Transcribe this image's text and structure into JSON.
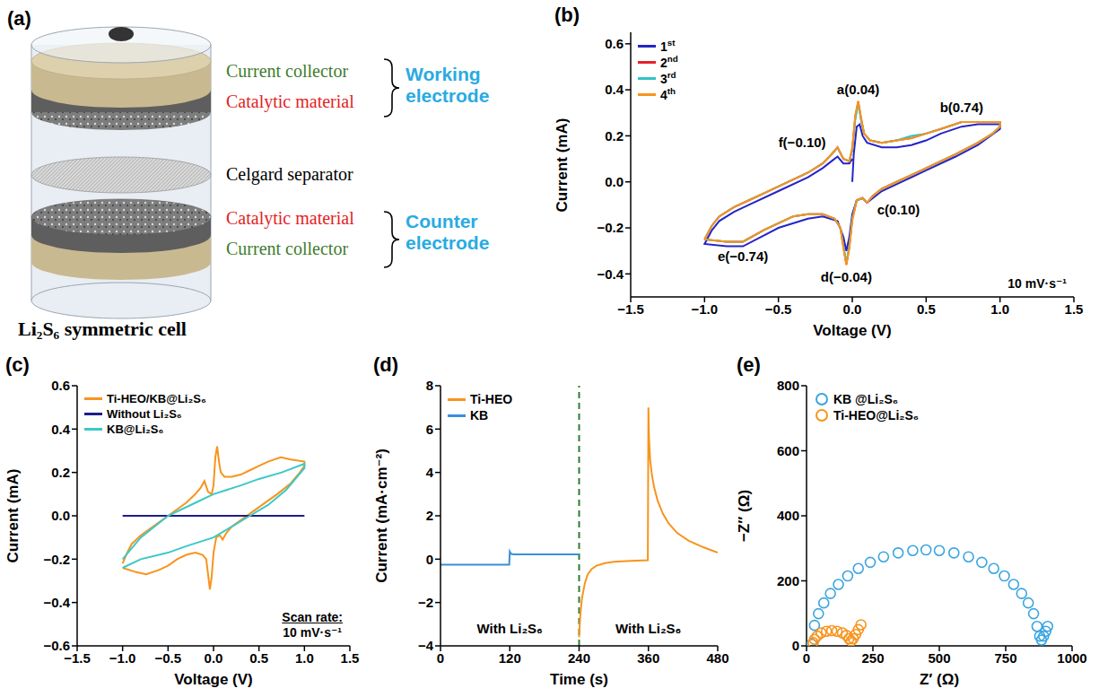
{
  "diagram": {
    "panel": "(a)",
    "layers": [
      "Current collector",
      "Catalytic material",
      "Celgard separator",
      "Catalytic material",
      "Current collector"
    ],
    "groups": [
      "Working electrode",
      "Counter electrode"
    ],
    "caption": "Li₂S₆ symmetric cell"
  },
  "chart_data": [
    {
      "panel": "(b)",
      "type": "line",
      "x_label": "Voltage (V)",
      "y_label": "Current (mA)",
      "legend": "top-left",
      "xlim": [
        -1.5,
        1.5
      ],
      "xticks": [
        {
          "value": -1.5,
          "label": "−1.5"
        },
        {
          "value": -1,
          "label": "−1.0"
        },
        {
          "value": -0.5,
          "label": "−0.5"
        },
        {
          "value": 0,
          "label": "0.0"
        },
        0.5,
        {
          "value": 1,
          "label": "1.0"
        },
        1.5
      ],
      "ylim": [
        -0.5,
        0.65
      ],
      "yticks": [
        {
          "value": -0.4,
          "label": "−0.4"
        },
        {
          "value": -0.2,
          "label": "−0.2"
        },
        {
          "value": 0,
          "label": "0.0"
        },
        0.2,
        0.4,
        0.6
      ],
      "x": [
        -1.0,
        -0.95,
        -0.9,
        -0.8,
        -0.7,
        -0.6,
        -0.5,
        -0.4,
        -0.3,
        -0.2,
        -0.14,
        -0.1,
        -0.06,
        -0.02,
        0.0,
        0.02,
        0.04,
        0.06,
        0.08,
        0.12,
        0.2,
        0.3,
        0.4,
        0.5,
        0.6,
        0.74,
        0.85,
        1.0,
        1.0,
        0.95,
        0.85,
        0.7,
        0.6,
        0.5,
        0.4,
        0.3,
        0.2,
        0.14,
        0.1,
        0.07,
        0.03,
        0.0,
        -0.02,
        -0.04,
        -0.06,
        -0.08,
        -0.12,
        -0.2,
        -0.3,
        -0.4,
        -0.5,
        -0.6,
        -0.74,
        -0.85,
        -1.0
      ],
      "series": [
        {
          "name": "1st",
          "color": "#2424c8",
          "x": [
            0.0,
            0.01,
            0.03,
            0.05,
            0.07,
            0.1,
            0.2,
            0.3,
            0.4,
            0.5,
            0.6,
            0.74,
            0.85,
            1.0,
            1.0,
            0.85,
            0.7,
            0.5,
            0.3,
            0.2,
            0.14,
            0.1,
            0.07,
            0.03,
            0.0,
            -0.02,
            -0.04,
            -0.06,
            -0.1,
            -0.2,
            -0.3,
            -0.5,
            -0.74,
            -0.85,
            -1.0,
            -0.95,
            -0.9,
            -0.8,
            -0.7,
            -0.5,
            -0.3,
            -0.2,
            -0.14,
            -0.1,
            -0.06,
            -0.02,
            0.0
          ],
          "values": [
            0.0,
            0.12,
            0.24,
            0.25,
            0.2,
            0.17,
            0.15,
            0.15,
            0.16,
            0.18,
            0.21,
            0.24,
            0.25,
            0.25,
            0.23,
            0.16,
            0.11,
            0.05,
            -0.01,
            -0.04,
            -0.07,
            -0.09,
            -0.07,
            -0.08,
            -0.14,
            -0.24,
            -0.3,
            -0.24,
            -0.17,
            -0.15,
            -0.16,
            -0.2,
            -0.28,
            -0.28,
            -0.27,
            -0.21,
            -0.17,
            -0.13,
            -0.1,
            -0.04,
            0.02,
            0.06,
            0.09,
            0.11,
            0.08,
            0.08,
            0.1
          ]
        },
        {
          "name": "2nd",
          "color": "#e8202a",
          "values": [
            -0.25,
            -0.19,
            -0.15,
            -0.11,
            -0.08,
            -0.05,
            -0.02,
            0.01,
            0.04,
            0.08,
            0.12,
            0.15,
            0.1,
            0.09,
            0.14,
            0.28,
            0.35,
            0.27,
            0.21,
            0.18,
            0.17,
            0.18,
            0.19,
            0.21,
            0.23,
            0.26,
            0.26,
            0.26,
            0.24,
            0.21,
            0.17,
            0.12,
            0.09,
            0.06,
            0.03,
            0.0,
            -0.03,
            -0.06,
            -0.09,
            -0.07,
            -0.08,
            -0.16,
            -0.28,
            -0.36,
            -0.28,
            -0.2,
            -0.16,
            -0.14,
            -0.14,
            -0.15,
            -0.18,
            -0.21,
            -0.26,
            -0.26,
            -0.25
          ]
        },
        {
          "name": "3rd",
          "color": "#2ec4c4",
          "values": [
            -0.25,
            -0.19,
            -0.15,
            -0.11,
            -0.08,
            -0.05,
            -0.02,
            0.01,
            0.04,
            0.08,
            0.12,
            0.15,
            0.1,
            0.09,
            0.14,
            0.27,
            0.34,
            0.27,
            0.21,
            0.18,
            0.17,
            0.18,
            0.2,
            0.21,
            0.23,
            0.26,
            0.26,
            0.26,
            0.24,
            0.21,
            0.17,
            0.12,
            0.09,
            0.06,
            0.03,
            0.0,
            -0.03,
            -0.06,
            -0.09,
            -0.07,
            -0.08,
            -0.16,
            -0.28,
            -0.35,
            -0.28,
            -0.2,
            -0.16,
            -0.14,
            -0.14,
            -0.15,
            -0.18,
            -0.21,
            -0.26,
            -0.26,
            -0.25
          ]
        },
        {
          "name": "4th",
          "color": "#f7941d",
          "values": [
            -0.25,
            -0.19,
            -0.15,
            -0.11,
            -0.08,
            -0.05,
            -0.02,
            0.01,
            0.04,
            0.08,
            0.12,
            0.15,
            0.1,
            0.09,
            0.15,
            0.29,
            0.35,
            0.28,
            0.21,
            0.18,
            0.17,
            0.18,
            0.19,
            0.21,
            0.23,
            0.26,
            0.26,
            0.26,
            0.24,
            0.21,
            0.17,
            0.12,
            0.09,
            0.06,
            0.03,
            0.0,
            -0.03,
            -0.06,
            -0.09,
            -0.07,
            -0.08,
            -0.17,
            -0.29,
            -0.36,
            -0.29,
            -0.2,
            -0.16,
            -0.14,
            -0.14,
            -0.15,
            -0.18,
            -0.21,
            -0.26,
            -0.26,
            -0.25
          ]
        }
      ],
      "annotations": [
        {
          "text": "a(0.04)",
          "x": 0.04,
          "y": 0.35
        },
        {
          "text": "b(0.74)",
          "x": 0.74,
          "y": 0.27
        },
        {
          "text": "f(−0.10)",
          "x": -0.13,
          "y": 0.17
        },
        {
          "text": "c(0.10)",
          "x": 0.12,
          "y": -0.12
        },
        {
          "text": "d(−0.04)",
          "x": -0.04,
          "y": -0.36
        },
        {
          "text": "e(−0.74)",
          "x": -0.74,
          "y": -0.27
        },
        {
          "text": "10 mV·s⁻¹"
        }
      ]
    },
    {
      "panel": "(c)",
      "type": "line",
      "x_label": "Voltage (V)",
      "y_label": "Current (mA)",
      "legend": "top-left",
      "xlim": [
        -1.5,
        1.5
      ],
      "xticks": [
        {
          "value": -1.5,
          "label": "−1.5"
        },
        {
          "value": -1,
          "label": "−1.0"
        },
        {
          "value": -0.5,
          "label": "−0.5"
        },
        {
          "value": 0,
          "label": "0.0"
        },
        0.5,
        {
          "value": 1,
          "label": "1.0"
        },
        1.5
      ],
      "ylim": [
        -0.6,
        0.6
      ],
      "yticks": [
        {
          "value": -0.6,
          "label": "−0.6"
        },
        {
          "value": -0.4,
          "label": "−0.4"
        },
        {
          "value": -0.2,
          "label": "−0.2"
        },
        {
          "value": 0,
          "label": "0.0"
        },
        0.2,
        0.4,
        0.6
      ],
      "x": [
        -1.0,
        -0.95,
        -0.9,
        -0.8,
        -0.7,
        -0.6,
        -0.5,
        -0.4,
        -0.3,
        -0.2,
        -0.14,
        -0.1,
        -0.06,
        -0.02,
        0.0,
        0.02,
        0.04,
        0.06,
        0.08,
        0.12,
        0.2,
        0.3,
        0.4,
        0.5,
        0.6,
        0.74,
        0.85,
        1.0,
        1.0,
        0.95,
        0.85,
        0.7,
        0.6,
        0.5,
        0.4,
        0.3,
        0.2,
        0.14,
        0.1,
        0.07,
        0.03,
        0.0,
        -0.02,
        -0.04,
        -0.06,
        -0.08,
        -0.12,
        -0.2,
        -0.3,
        -0.4,
        -0.5,
        -0.6,
        -0.74,
        -0.85,
        -1.0
      ],
      "series": [
        {
          "name": "Ti-HEO/KB@Li₂S₆",
          "color": "#f7941d",
          "values": [
            -0.22,
            -0.17,
            -0.13,
            -0.09,
            -0.06,
            -0.03,
            0.0,
            0.03,
            0.06,
            0.1,
            0.13,
            0.16,
            0.11,
            0.1,
            0.14,
            0.27,
            0.32,
            0.25,
            0.2,
            0.18,
            0.18,
            0.19,
            0.21,
            0.23,
            0.25,
            0.27,
            0.26,
            0.25,
            0.23,
            0.2,
            0.15,
            0.1,
            0.07,
            0.04,
            0.01,
            -0.02,
            -0.05,
            -0.08,
            -0.11,
            -0.09,
            -0.1,
            -0.17,
            -0.28,
            -0.34,
            -0.27,
            -0.2,
            -0.18,
            -0.17,
            -0.18,
            -0.2,
            -0.23,
            -0.25,
            -0.27,
            -0.26,
            -0.24
          ]
        },
        {
          "name": "Without Li₂S₆",
          "color": "#1e1e8c",
          "x": [
            -1.0,
            1.0
          ],
          "values": [
            0.0,
            0.0
          ]
        },
        {
          "name": "KB@Li₂S₆",
          "color": "#3cc8c8",
          "x": [
            -1.0,
            -0.8,
            -0.5,
            -0.2,
            0.0,
            0.3,
            0.5,
            0.75,
            1.0,
            1.0,
            0.8,
            0.6,
            0.4,
            0.2,
            0.0,
            -0.3,
            -0.5,
            -0.8,
            -1.0
          ],
          "values": [
            -0.2,
            -0.1,
            0.0,
            0.06,
            0.1,
            0.14,
            0.17,
            0.2,
            0.24,
            0.22,
            0.12,
            0.05,
            0.0,
            -0.05,
            -0.1,
            -0.14,
            -0.17,
            -0.2,
            -0.24
          ]
        }
      ],
      "annotations": [
        {
          "text": "Scan rate:"
        },
        {
          "text": "10 mV·s⁻¹"
        }
      ]
    },
    {
      "panel": "(d)",
      "type": "line",
      "x_label": "Time (s)",
      "y_label": "Current (mA·cm⁻²)",
      "legend": "top-left",
      "xlim": [
        0,
        480
      ],
      "xticks": [
        0,
        120,
        240,
        360,
        480
      ],
      "ylim": [
        -4,
        8
      ],
      "yticks": [
        {
          "value": -4,
          "label": "−4"
        },
        {
          "value": -2,
          "label": "−2"
        },
        0,
        2,
        4,
        6,
        8
      ],
      "vline": {
        "x": 240,
        "color": "#2e7d32",
        "line_style": "dashed"
      },
      "series": [
        {
          "name": "Ti-HEO",
          "color": "#f7941d",
          "x": [
            240,
            242,
            245,
            250,
            255,
            262,
            270,
            285,
            300,
            330,
            359,
            360,
            361,
            363,
            366,
            370,
            376,
            385,
            395,
            410,
            430,
            455,
            480
          ],
          "values": [
            -3.6,
            -2.6,
            -1.8,
            -1.1,
            -0.7,
            -0.45,
            -0.3,
            -0.18,
            -0.12,
            -0.08,
            -0.05,
            7.0,
            5.6,
            4.6,
            3.9,
            3.3,
            2.7,
            2.1,
            1.65,
            1.2,
            0.85,
            0.55,
            0.3
          ]
        },
        {
          "name": "KB",
          "color": "#3b8fd8",
          "x": [
            0,
            119,
            120,
            122,
            126,
            240
          ],
          "values": [
            -0.25,
            -0.25,
            0.35,
            0.25,
            0.22,
            0.22
          ]
        }
      ],
      "annotations": [
        {
          "text": "With Li₂S₆",
          "x": 120,
          "y": -3.2
        },
        {
          "text": "With Li₂S₆",
          "x": 360,
          "y": -3.2
        }
      ]
    },
    {
      "panel": "(e)",
      "type": "scatter",
      "x_label": "Z′ (Ω)",
      "y_label": "−Z″ (Ω)",
      "legend": "top-left",
      "marker": "hollow",
      "xlim": [
        0,
        1000
      ],
      "xticks": [
        0,
        250,
        500,
        750,
        1000
      ],
      "ylim": [
        0,
        800
      ],
      "yticks": [
        0,
        200,
        400,
        600,
        800
      ],
      "series": [
        {
          "name": "KB @Li₂S₆",
          "color": "#3ba5e0",
          "x": [
            20,
            30,
            45,
            65,
            90,
            120,
            155,
            195,
            240,
            290,
            345,
            400,
            450,
            500,
            555,
            610,
            660,
            705,
            745,
            780,
            810,
            835,
            855,
            868,
            878,
            885,
            893,
            901,
            908
          ],
          "values": [
            5,
            63,
            99,
            132,
            161,
            189,
            215,
            238,
            257,
            274,
            286,
            293,
            295,
            293,
            286,
            274,
            257,
            238,
            215,
            189,
            161,
            132,
            99,
            60,
            30,
            18,
            30,
            45,
            60
          ]
        },
        {
          "name": "Ti-HEO@Li₂S₆",
          "color": "#f7941d",
          "x": [
            25,
            30,
            40,
            55,
            75,
            95,
            115,
            135,
            150,
            160,
            168,
            176,
            185,
            195,
            205
          ],
          "values": [
            10,
            20,
            30,
            40,
            45,
            47,
            45,
            40,
            32,
            22,
            15,
            22,
            35,
            50,
            65
          ]
        }
      ]
    }
  ]
}
